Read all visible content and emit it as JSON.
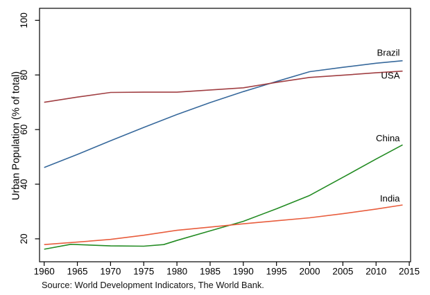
{
  "window": {
    "background": "#ffffff"
  },
  "chart_data": {
    "type": "line",
    "title": "",
    "xlabel": "",
    "ylabel": "Urban Population (% of total)",
    "source_note": "Source: World Development Indicators, The World Bank.",
    "xlim": [
      1959.3,
      2015.2
    ],
    "ylim": [
      11.6,
      104.4
    ],
    "x_ticks": [
      1960,
      1965,
      1970,
      1975,
      1980,
      1985,
      1990,
      1995,
      2000,
      2005,
      2010,
      2015
    ],
    "y_ticks": [
      20,
      40,
      60,
      80,
      100
    ],
    "grid": false,
    "legend": "direct-line-end-labels",
    "frame_color": "#000000",
    "series": [
      {
        "name": "Brazil",
        "color": "#36689B",
        "x": [
          1960,
          1965,
          1970,
          1975,
          1980,
          1985,
          1990,
          1995,
          2000,
          2005,
          2010,
          2014
        ],
        "values": [
          46.1,
          50.9,
          55.9,
          60.8,
          65.5,
          69.9,
          73.9,
          77.6,
          81.2,
          82.8,
          84.3,
          85.2
        ]
      },
      {
        "name": "USA",
        "color": "#A03E42",
        "x": [
          1960,
          1965,
          1970,
          1975,
          1980,
          1985,
          1990,
          1995,
          2000,
          2005,
          2010,
          2014
        ],
        "values": [
          70.0,
          71.9,
          73.6,
          73.7,
          73.7,
          74.5,
          75.3,
          77.3,
          79.1,
          79.9,
          80.8,
          81.4
        ]
      },
      {
        "name": "China",
        "color": "#228B22",
        "x": [
          1960,
          1964,
          1970,
          1975,
          1978,
          1980,
          1985,
          1990,
          1995,
          2000,
          2005,
          2010,
          2014
        ],
        "values": [
          16.2,
          18.0,
          17.4,
          17.3,
          17.9,
          19.4,
          22.9,
          26.4,
          31.0,
          35.9,
          42.5,
          49.2,
          54.4
        ]
      },
      {
        "name": "India",
        "color": "#E85C3C",
        "x": [
          1960,
          1965,
          1970,
          1975,
          1980,
          1985,
          1990,
          1995,
          2000,
          2005,
          2010,
          2014
        ],
        "values": [
          17.9,
          18.8,
          19.8,
          21.3,
          23.1,
          24.3,
          25.5,
          26.6,
          27.7,
          29.2,
          30.9,
          32.4
        ]
      }
    ]
  }
}
